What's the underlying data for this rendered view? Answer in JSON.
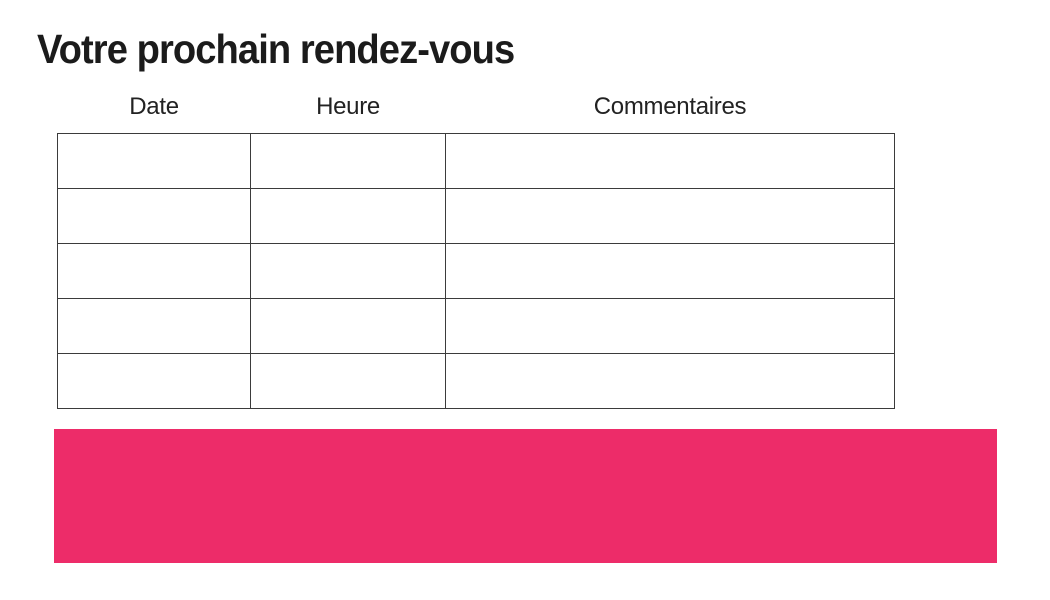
{
  "page": {
    "title": "Votre prochain rendez-vous",
    "background": "#ffffff"
  },
  "appointments_table": {
    "columns": [
      {
        "key": "date",
        "label": "Date"
      },
      {
        "key": "heure",
        "label": "Heure"
      },
      {
        "key": "commentaires",
        "label": "Commentaires"
      }
    ],
    "rows": [
      {
        "date": "",
        "heure": "",
        "commentaires": ""
      },
      {
        "date": "",
        "heure": "",
        "commentaires": ""
      },
      {
        "date": "",
        "heure": "",
        "commentaires": ""
      },
      {
        "date": "",
        "heure": "",
        "commentaires": ""
      },
      {
        "date": "",
        "heure": "",
        "commentaires": ""
      }
    ]
  },
  "banner": {
    "text": "",
    "color": "#ed2c69"
  },
  "colors": {
    "accent": "#ed2c69",
    "table_border": "#3b3b3b",
    "title_text": "#1b1b1b",
    "header_text": "#222222"
  }
}
